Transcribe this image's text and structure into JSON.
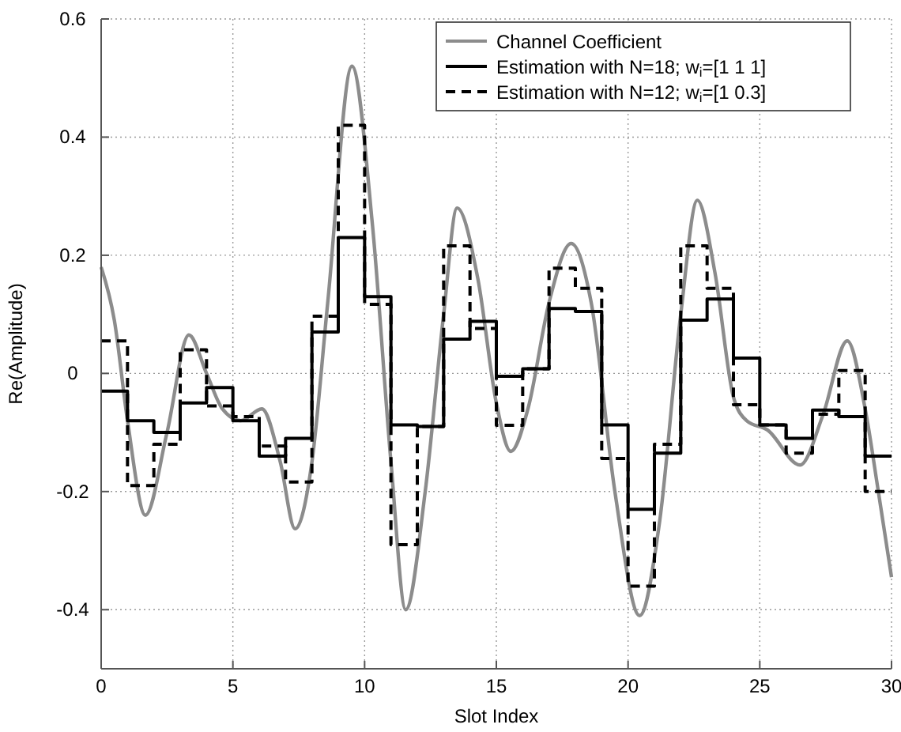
{
  "chart_data": {
    "type": "line",
    "xlabel": "Slot Index",
    "ylabel": "Re(Amplitude)",
    "xlim": [
      0,
      30
    ],
    "xticks": [
      0,
      5,
      10,
      15,
      20,
      25,
      30
    ],
    "ylim": [
      -0.5,
      0.6
    ],
    "yticks": [
      -0.4,
      -0.2,
      0,
      0.2,
      0.4,
      0.6
    ],
    "grid": true,
    "legend": "top right",
    "series": [
      {
        "name": "Channel Coefficient",
        "color": "#8c8c8c",
        "line_style": "solid",
        "x": [
          0,
          0.5,
          1.0,
          1.68,
          2.5,
          3.33,
          4.0,
          4.6,
          5.3,
          6.1,
          6.8,
          7.36,
          8.0,
          8.6,
          9.52,
          10.3,
          11.0,
          11.56,
          12.3,
          13.0,
          13.51,
          14.3,
          15.0,
          15.55,
          16.2,
          17.0,
          17.84,
          18.6,
          19.5,
          20.44,
          21.2,
          22.0,
          22.63,
          23.3,
          24.0,
          24.5,
          25.3,
          26.53,
          27.4,
          28.32,
          29.0,
          29.5,
          30
        ],
        "values": [
          0.18,
          0.09,
          -0.08,
          -0.24,
          -0.1,
          0.065,
          0.0,
          -0.06,
          -0.08,
          -0.06,
          -0.15,
          -0.263,
          -0.15,
          0.12,
          0.52,
          0.25,
          -0.15,
          -0.4,
          -0.2,
          0.1,
          0.28,
          0.16,
          -0.05,
          -0.132,
          -0.06,
          0.12,
          0.22,
          0.12,
          -0.2,
          -0.41,
          -0.25,
          0.1,
          0.293,
          0.17,
          -0.04,
          -0.08,
          -0.096,
          -0.155,
          -0.07,
          0.055,
          -0.06,
          -0.2,
          -0.345
        ]
      },
      {
        "name": "Estimation with N=18; w$_{i}$=[1 1 1]",
        "color": "#000000",
        "type": "step",
        "line_style": "solid",
        "x": [
          0,
          1,
          2,
          3,
          4,
          5,
          6,
          7,
          8,
          9,
          10,
          11,
          12,
          13,
          14,
          15,
          16,
          17,
          18,
          19,
          20,
          21,
          22,
          23,
          24,
          25,
          26,
          27,
          28,
          29,
          30
        ],
        "values": [
          -0.03,
          -0.08,
          -0.1,
          -0.05,
          -0.024,
          -0.08,
          -0.14,
          -0.11,
          0.07,
          0.23,
          0.13,
          -0.087,
          -0.09,
          0.058,
          0.088,
          -0.005,
          0.008,
          0.11,
          0.105,
          -0.087,
          -0.23,
          -0.135,
          0.09,
          0.126,
          0.026,
          -0.087,
          -0.11,
          -0.062,
          -0.073,
          -0.14,
          -0.14
        ]
      },
      {
        "name": "Estimation with N=12; w$_{i}$=[1 0.3]",
        "color": "#000000",
        "type": "step",
        "line_style": "dashed",
        "x": [
          0,
          1,
          2,
          3,
          4,
          5,
          6,
          7,
          8,
          9,
          10,
          11,
          12,
          13,
          14,
          15,
          16,
          17,
          18,
          19,
          20,
          21,
          22,
          23,
          24,
          25,
          26,
          27,
          28,
          29,
          30
        ],
        "values": [
          0.055,
          -0.19,
          -0.12,
          0.04,
          -0.055,
          -0.073,
          -0.123,
          -0.184,
          0.097,
          0.42,
          0.117,
          -0.29,
          -0.09,
          0.216,
          0.076,
          -0.088,
          0.008,
          0.178,
          0.144,
          -0.144,
          -0.36,
          -0.12,
          0.216,
          0.144,
          -0.053,
          -0.087,
          -0.135,
          -0.069,
          0.005,
          -0.2,
          -0.2
        ]
      }
    ]
  }
}
